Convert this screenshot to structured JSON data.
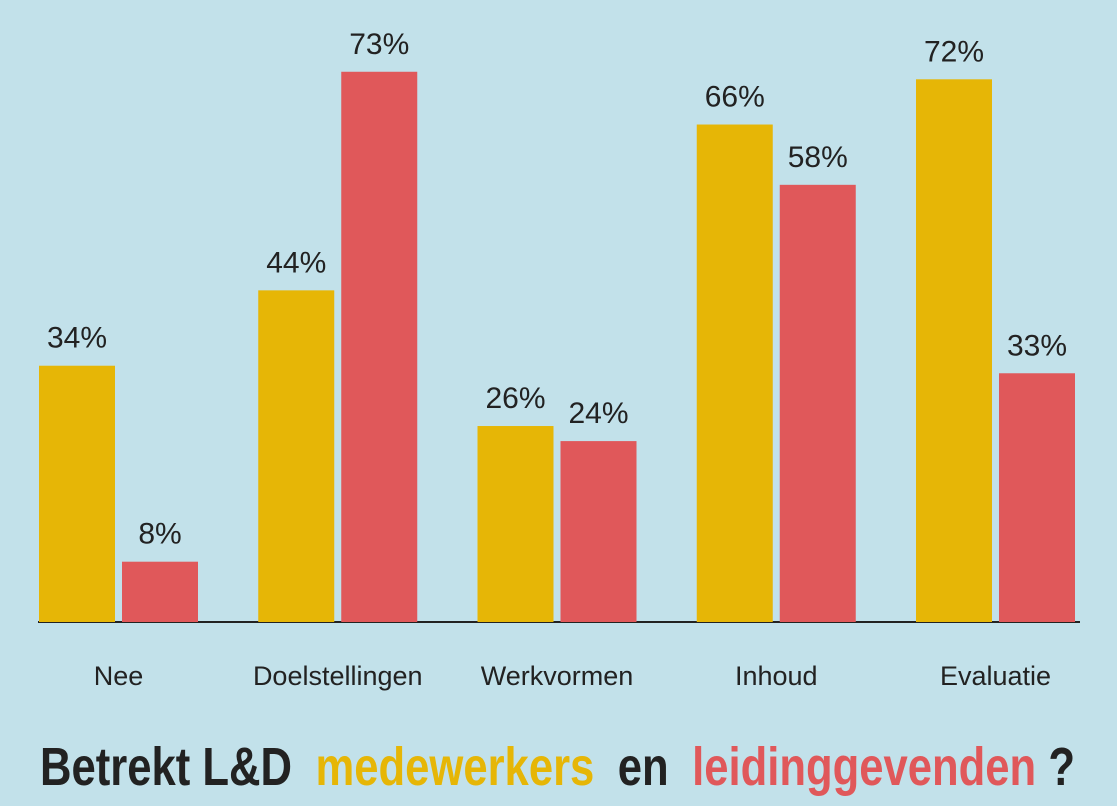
{
  "chart_data": {
    "type": "bar",
    "title_prefix": "Betrekt L&D",
    "title_middle": "en",
    "title_suffix": "?",
    "categories": [
      "Nee",
      "Doelstellingen",
      "Werkvormen",
      "Inhoud",
      "Evaluatie"
    ],
    "series": [
      {
        "name": "medewerkers",
        "color": "#e6b606",
        "values": [
          34,
          44,
          26,
          66,
          72
        ],
        "value_labels": [
          "34%",
          "44%",
          "26%",
          "66%",
          "72%"
        ]
      },
      {
        "name": "leidinggevenden",
        "color": "#e0585a",
        "values": [
          8,
          73,
          24,
          58,
          33
        ],
        "value_labels": [
          "8%",
          "73%",
          "24%",
          "58%",
          "33%"
        ]
      }
    ],
    "ylim": [
      0,
      80
    ],
    "title_color": "#222222"
  }
}
